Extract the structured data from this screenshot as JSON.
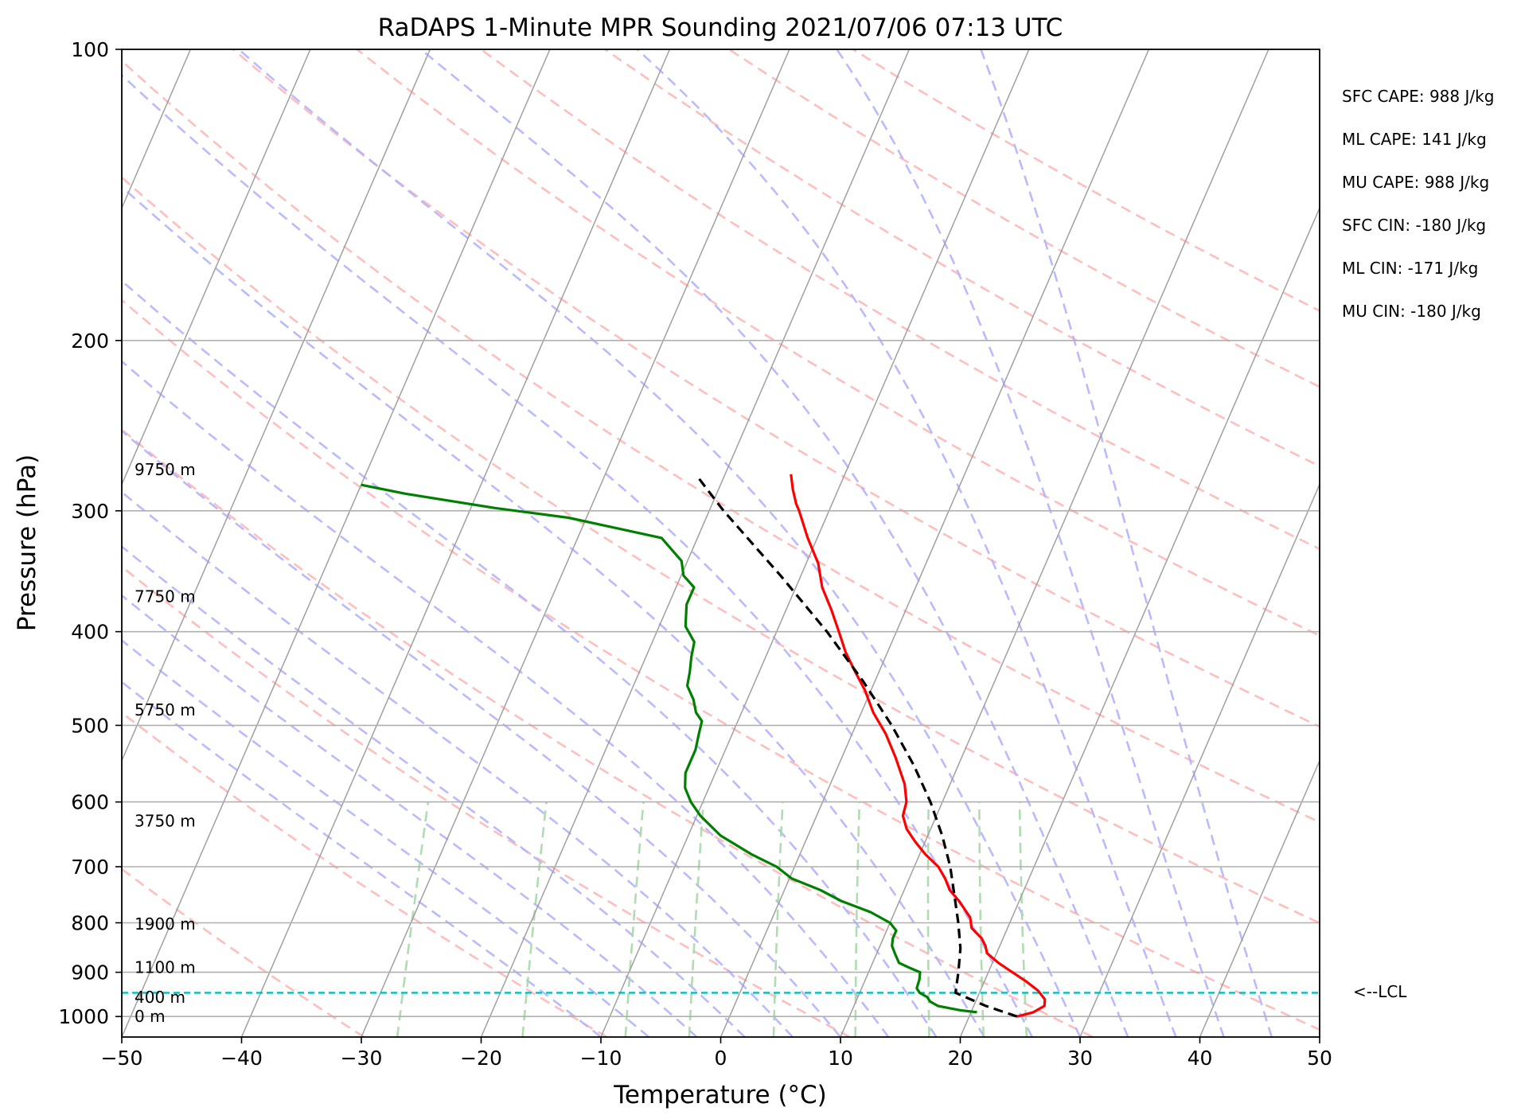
{
  "chart_data": {
    "type": "line",
    "title": "RaDAPS 1-Minute MPR Sounding 2021/07/06 07:13 UTC",
    "xlabel": "Temperature (°C)",
    "ylabel": "Pressure (hPa)",
    "xlim": [
      -50,
      50
    ],
    "ylim": [
      1050,
      100
    ],
    "yscale": "log",
    "skew_deg_per_decade": 35,
    "x_ticks": [
      -50,
      -40,
      -30,
      -20,
      -10,
      0,
      10,
      20,
      30,
      40,
      50
    ],
    "x_tick_labels": [
      "−50",
      "−40",
      "−30",
      "−20",
      "−10",
      "0",
      "10",
      "20",
      "30",
      "40",
      "50"
    ],
    "y_ticks": [
      100,
      200,
      300,
      400,
      500,
      600,
      700,
      800,
      900,
      1000
    ],
    "y_tick_labels": [
      "100",
      "200",
      "300",
      "400",
      "500",
      "600",
      "700",
      "800",
      "900",
      "1000"
    ],
    "grid": true,
    "colors": {
      "temperature": "#ff0000",
      "dewpoint": "#008000",
      "parcel": "#000000",
      "lcl": "#00bfbf",
      "isotherm": "#a0a0a0",
      "dry_adiabat": "#ffb3b3",
      "moist_adiabat": "#b3b3ff",
      "mixing_ratio": "#a8d8a8"
    },
    "series": [
      {
        "key": "temperature",
        "points": [
          [
            1000,
            24.0
          ],
          [
            990,
            25.2
          ],
          [
            975,
            25.9
          ],
          [
            960,
            25.7
          ],
          [
            940,
            24.8
          ],
          [
            920,
            23.5
          ],
          [
            900,
            22.0
          ],
          [
            880,
            20.5
          ],
          [
            860,
            19.2
          ],
          [
            845,
            18.8
          ],
          [
            830,
            18.2
          ],
          [
            810,
            17.0
          ],
          [
            790,
            16.5
          ],
          [
            760,
            15.0
          ],
          [
            740,
            13.8
          ],
          [
            720,
            13.0
          ],
          [
            700,
            12.0
          ],
          [
            680,
            10.5
          ],
          [
            660,
            9.2
          ],
          [
            640,
            8.0
          ],
          [
            620,
            7.2
          ],
          [
            600,
            7.0
          ],
          [
            575,
            6.2
          ],
          [
            540,
            4.5
          ],
          [
            510,
            2.8
          ],
          [
            485,
            1.0
          ],
          [
            460,
            -0.5
          ],
          [
            440,
            -2.0
          ],
          [
            420,
            -3.5
          ],
          [
            400,
            -4.8
          ],
          [
            380,
            -6.2
          ],
          [
            360,
            -7.8
          ],
          [
            340,
            -9.0
          ],
          [
            320,
            -10.8
          ],
          [
            300,
            -12.5
          ],
          [
            295,
            -13.0
          ],
          [
            285,
            -13.8
          ],
          [
            275,
            -14.5
          ]
        ]
      },
      {
        "key": "dewpoint",
        "points": [
          [
            990,
            20.5
          ],
          [
            985,
            19.0
          ],
          [
            975,
            17.0
          ],
          [
            965,
            16.2
          ],
          [
            955,
            15.8
          ],
          [
            945,
            15.0
          ],
          [
            935,
            14.6
          ],
          [
            915,
            14.5
          ],
          [
            900,
            14.3
          ],
          [
            890,
            13.2
          ],
          [
            880,
            12.2
          ],
          [
            860,
            11.5
          ],
          [
            845,
            11.0
          ],
          [
            830,
            10.8
          ],
          [
            815,
            10.8
          ],
          [
            800,
            10.0
          ],
          [
            780,
            8.0
          ],
          [
            760,
            5.2
          ],
          [
            740,
            3.0
          ],
          [
            720,
            0.2
          ],
          [
            700,
            -1.5
          ],
          [
            680,
            -4.0
          ],
          [
            650,
            -7.3
          ],
          [
            620,
            -9.7
          ],
          [
            600,
            -11.0
          ],
          [
            580,
            -12.0
          ],
          [
            560,
            -12.5
          ],
          [
            545,
            -12.5
          ],
          [
            530,
            -12.5
          ],
          [
            510,
            -12.8
          ],
          [
            495,
            -13.0
          ],
          [
            485,
            -13.8
          ],
          [
            470,
            -14.5
          ],
          [
            455,
            -15.5
          ],
          [
            440,
            -15.8
          ],
          [
            425,
            -16.2
          ],
          [
            410,
            -16.5
          ],
          [
            395,
            -17.8
          ],
          [
            375,
            -18.5
          ],
          [
            360,
            -18.5
          ],
          [
            350,
            -19.8
          ],
          [
            338,
            -20.5
          ],
          [
            320,
            -23.0
          ],
          [
            305,
            -31.5
          ],
          [
            298,
            -38.0
          ],
          [
            288,
            -46.0
          ],
          [
            282,
            -50.0
          ]
        ]
      },
      {
        "key": "parcel",
        "points": [
          [
            1000,
            24.0
          ],
          [
            975,
            21.0
          ],
          [
            945,
            18.0
          ],
          [
            900,
            17.5
          ],
          [
            850,
            16.8
          ],
          [
            800,
            15.7
          ],
          [
            750,
            14.4
          ],
          [
            700,
            13.0
          ],
          [
            650,
            11.2
          ],
          [
            600,
            9.0
          ],
          [
            550,
            6.3
          ],
          [
            500,
            3.0
          ],
          [
            450,
            -1.0
          ],
          [
            400,
            -5.8
          ],
          [
            350,
            -11.7
          ],
          [
            300,
            -18.8
          ],
          [
            276,
            -22.3
          ]
        ]
      }
    ],
    "lcl_pressure": 945,
    "lcl_label": "<--LCL",
    "height_labels": [
      {
        "p": 1000,
        "text": "0 m"
      },
      {
        "p": 955,
        "text": "400 m"
      },
      {
        "p": 890,
        "text": "1100 m"
      },
      {
        "p": 802,
        "text": "1900 m"
      },
      {
        "p": 628,
        "text": "3750 m"
      },
      {
        "p": 482,
        "text": "5750 m"
      },
      {
        "p": 368,
        "text": "7750 m"
      },
      {
        "p": 272,
        "text": "9750 m"
      }
    ],
    "stats": [
      "SFC CAPE: 988 J/kg",
      "ML CAPE: 141 J/kg",
      "MU CAPE: 988 J/kg",
      "SFC CIN: -180 J/kg",
      "ML CIN: -171 J/kg",
      "MU CIN: -180 J/kg"
    ]
  }
}
